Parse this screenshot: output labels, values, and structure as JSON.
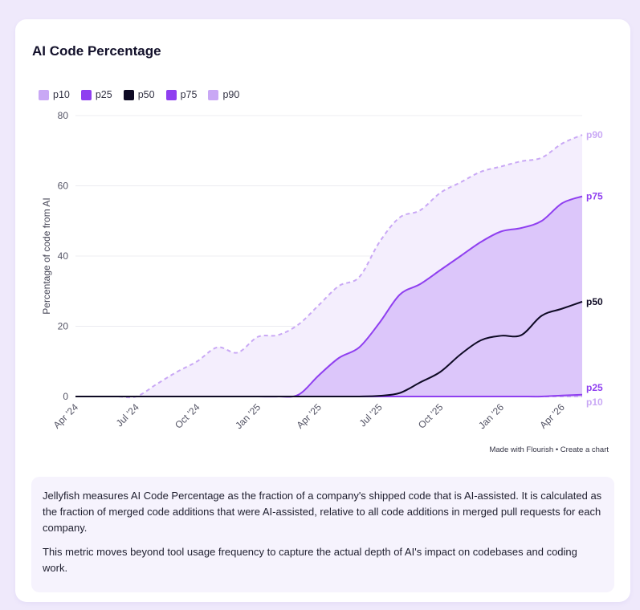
{
  "card": {
    "title": "AI Code Percentage",
    "credit": "Made with Flourish • Create a chart",
    "description": [
      "Jellyfish measures AI Code Percentage as the fraction of a company's shipped code that is AI-assisted. It is calculated as the fraction of merged code additions that were AI-assisted, relative to all code additions in merged pull requests for each company.",
      "This metric moves beyond tool usage frequency to capture the actual depth of AI's impact on codebases and coding work."
    ]
  },
  "colors": {
    "p10": "#c9a8f5",
    "p25": "#8f3ff0",
    "p50": "#0e0a24",
    "p75": "#8f3ff0",
    "p90": "#c9a8f5",
    "band_outer": "#f4eefd",
    "band_inner": "#dcc6fa"
  },
  "chart_data": {
    "type": "line",
    "ylabel": "Percentage of code from AI",
    "xlabel": "",
    "ylim": [
      0,
      80
    ],
    "y_ticks": [
      "0",
      "20",
      "40",
      "60",
      "80"
    ],
    "x_ticks": [
      "Apr '24",
      "Jul '24",
      "Oct '24",
      "Jan '25",
      "Apr '25",
      "Jul '25",
      "Oct '25",
      "Jan '26",
      "Apr '26"
    ],
    "x": [
      "Apr '24",
      "May '24",
      "Jun '24",
      "Jul '24",
      "Aug '24",
      "Sep '24",
      "Oct '24",
      "Nov '24",
      "Dec '24",
      "Jan '25",
      "Feb '25",
      "Mar '25",
      "Apr '25",
      "May '25",
      "Jun '25",
      "Jul '25",
      "Aug '25",
      "Sep '25",
      "Oct '25",
      "Nov '25",
      "Dec '25",
      "Jan '26",
      "Feb '26",
      "Mar '26",
      "Apr '26",
      "May '26"
    ],
    "legend_position": "top-left",
    "grid": true,
    "series": [
      {
        "name": "p10",
        "style": "dashed",
        "values": [
          0,
          0,
          0,
          0,
          0,
          0,
          0,
          0,
          0,
          0,
          0,
          0,
          0,
          0,
          0,
          0,
          0,
          0,
          0,
          0,
          0,
          0,
          0,
          0,
          0,
          0
        ]
      },
      {
        "name": "p25",
        "style": "solid",
        "values": [
          0,
          0,
          0,
          0,
          0,
          0,
          0,
          0,
          0,
          0,
          0,
          0,
          0,
          0,
          0,
          0,
          0,
          0,
          0,
          0,
          0,
          0,
          0,
          0,
          0.3,
          0.5
        ]
      },
      {
        "name": "p50",
        "style": "solid",
        "values": [
          0,
          0,
          0,
          0,
          0,
          0,
          0,
          0,
          0,
          0,
          0,
          0,
          0,
          0,
          0,
          0.2,
          1,
          4,
          7,
          12,
          16,
          17.3,
          17.5,
          23,
          25,
          27
        ]
      },
      {
        "name": "p75",
        "style": "solid",
        "values": [
          0,
          0,
          0,
          0,
          0,
          0,
          0,
          0,
          0,
          0,
          0,
          0.5,
          6,
          11,
          14,
          21,
          29,
          32,
          36,
          40,
          44,
          47,
          48,
          50,
          55,
          57
        ]
      },
      {
        "name": "p90",
        "style": "dashed",
        "values": [
          0,
          0,
          0,
          0,
          3.5,
          7,
          10,
          14,
          12.5,
          17,
          17.5,
          20.5,
          26,
          31.5,
          34,
          44,
          51,
          53,
          58,
          61,
          64,
          65.5,
          67,
          68,
          72,
          74.5
        ]
      }
    ]
  }
}
